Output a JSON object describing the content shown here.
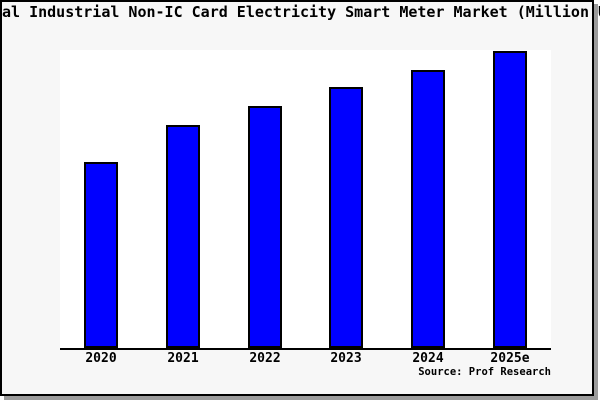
{
  "chart_data": {
    "type": "bar",
    "title": "Global Industrial Non-IC Card Electricity Smart Meter Market (Million USD)",
    "categories": [
      "2020",
      "2021",
      "2022",
      "2023",
      "2024",
      "2025e"
    ],
    "values": [
      62.6,
      75.1,
      81.5,
      87.9,
      93.8,
      100
    ],
    "values_note": "no y-axis or value labels are rendered; values estimated from bar heights relative to tallest bar = 100",
    "xlabel": "",
    "ylabel": "",
    "ylim": [
      0,
      100.5
    ],
    "grid": false,
    "legend_position": "none",
    "bar_color": "#0000ff",
    "bar_border_color": "#000000"
  },
  "footer": {
    "source": "Source: Prof Research"
  },
  "colors": {
    "canvas_bg": "#ffffff",
    "box_bg": "#f7f7f7",
    "plot_bg": "#ffffff",
    "border": "#000000",
    "shadow": "#9c9c9c",
    "axis": "#000000"
  }
}
